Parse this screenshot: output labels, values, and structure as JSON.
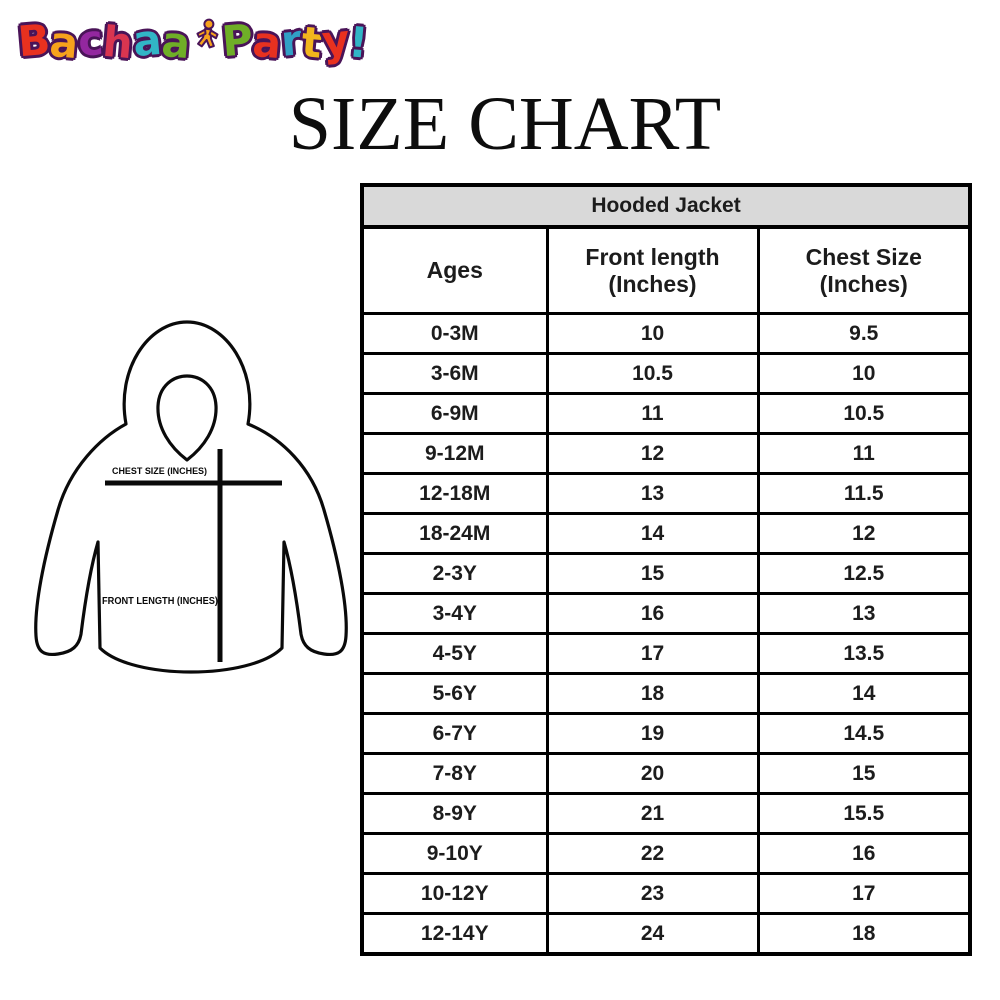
{
  "logo": {
    "text": "Bachaa Party!",
    "outline_color": "#4a1458",
    "word1_letters": [
      {
        "ch": "B",
        "color": "#e8311f"
      },
      {
        "ch": "a",
        "color": "#f6a21c"
      },
      {
        "ch": "c",
        "color": "#93279f"
      },
      {
        "ch": "h",
        "color": "#d93550"
      },
      {
        "ch": "a",
        "color": "#31b5c6"
      },
      {
        "ch": "a",
        "color": "#6fae27"
      }
    ],
    "word2_letters": [
      {
        "ch": "P",
        "color": "#6fae27"
      },
      {
        "ch": "a",
        "color": "#e8311f"
      },
      {
        "ch": "r",
        "color": "#31a0c6"
      },
      {
        "ch": "t",
        "color": "#f2b51d"
      },
      {
        "ch": "y",
        "color": "#e8311f"
      },
      {
        "ch": "!",
        "color": "#31b5c6"
      }
    ],
    "child_figure_color": "#f6a21c"
  },
  "title": "SIZE CHART",
  "diagram": {
    "chest_label": "CHEST SIZE (INCHES)",
    "front_label": "FRONT LENGTH (INCHES)"
  },
  "table": {
    "title": "Hooded Jacket",
    "header_bg": "#d9d9d9",
    "border_color": "#000000",
    "columns": [
      {
        "line1": "Ages",
        "line2": ""
      },
      {
        "line1": "Front length",
        "line2": "(Inches)"
      },
      {
        "line1": "Chest Size",
        "line2": "(Inches)"
      }
    ],
    "rows": [
      [
        "0-3M",
        "10",
        "9.5"
      ],
      [
        "3-6M",
        "10.5",
        "10"
      ],
      [
        "6-9M",
        "11",
        "10.5"
      ],
      [
        "9-12M",
        "12",
        "11"
      ],
      [
        "12-18M",
        "13",
        "11.5"
      ],
      [
        "18-24M",
        "14",
        "12"
      ],
      [
        "2-3Y",
        "15",
        "12.5"
      ],
      [
        "3-4Y",
        "16",
        "13"
      ],
      [
        "4-5Y",
        "17",
        "13.5"
      ],
      [
        "5-6Y",
        "18",
        "14"
      ],
      [
        "6-7Y",
        "19",
        "14.5"
      ],
      [
        "7-8Y",
        "20",
        "15"
      ],
      [
        "8-9Y",
        "21",
        "15.5"
      ],
      [
        "9-10Y",
        "22",
        "16"
      ],
      [
        "10-12Y",
        "23",
        "17"
      ],
      [
        "12-14Y",
        "24",
        "18"
      ]
    ]
  }
}
